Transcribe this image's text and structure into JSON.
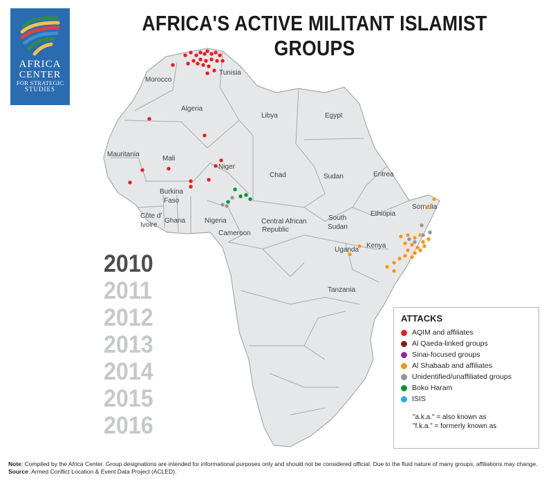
{
  "logo": {
    "line1": "AFRICA",
    "line2": "CENTER",
    "line3": "FOR STRATEGIC",
    "line4": "STUDIES"
  },
  "title": "AFRICA'S ACTIVE MILITANT ISLAMIST GROUPS",
  "map": {
    "fill": "#e6e7e8",
    "border": "#a7a9ac",
    "country_labels": [
      "Morocco",
      "Tunisia",
      "Algeria",
      "Libya",
      "Egypt",
      "Mauritania",
      "Mali",
      "Niger",
      "Chad",
      "Sudan",
      "Eritrea",
      "Burkina",
      "Faso",
      "Côte d'",
      "Ivoire",
      "Ghana",
      "Nigeria",
      "Cameroon",
      "Central African",
      "Republic",
      "South",
      "Sudan",
      "Ethiopia",
      "Somalia",
      "Uganda",
      "Kenya",
      "Tanzania"
    ]
  },
  "years": [
    "2010",
    "2011",
    "2012",
    "2013",
    "2014",
    "2015",
    "2016"
  ],
  "selected_year": "2010",
  "legend": {
    "title": "ATTACKS",
    "items": [
      {
        "label": "AQIM and affiliates",
        "color": "#e31e25"
      },
      {
        "label": "Al Qaeda-linked groups",
        "color": "#8b1a1a"
      },
      {
        "label": "Sinai-focused groups",
        "color": "#93278f"
      },
      {
        "label": "Al Shabaab and affiliates",
        "color": "#f7941d"
      },
      {
        "label": "Unidentified/unaffiliated groups",
        "color": "#939598"
      },
      {
        "label": "Boko Haram",
        "color": "#00923f"
      },
      {
        "label": "ISIS",
        "color": "#27aae1"
      }
    ],
    "note1": "\"a.k.a.\" = also known as",
    "note2": "\"f.k.a.\" = formerly known as"
  },
  "footnote": {
    "note_label": "Note",
    "note_text": ": Compiled by the Africa Center. Group designations are intended for informational purposes only and should not be considered official. Due to the fluid nature of many groups, affiliations may change.",
    "source_label": "Source",
    "source_text": ": Armed Conflict Location & Event Data Project (ACLED)."
  }
}
